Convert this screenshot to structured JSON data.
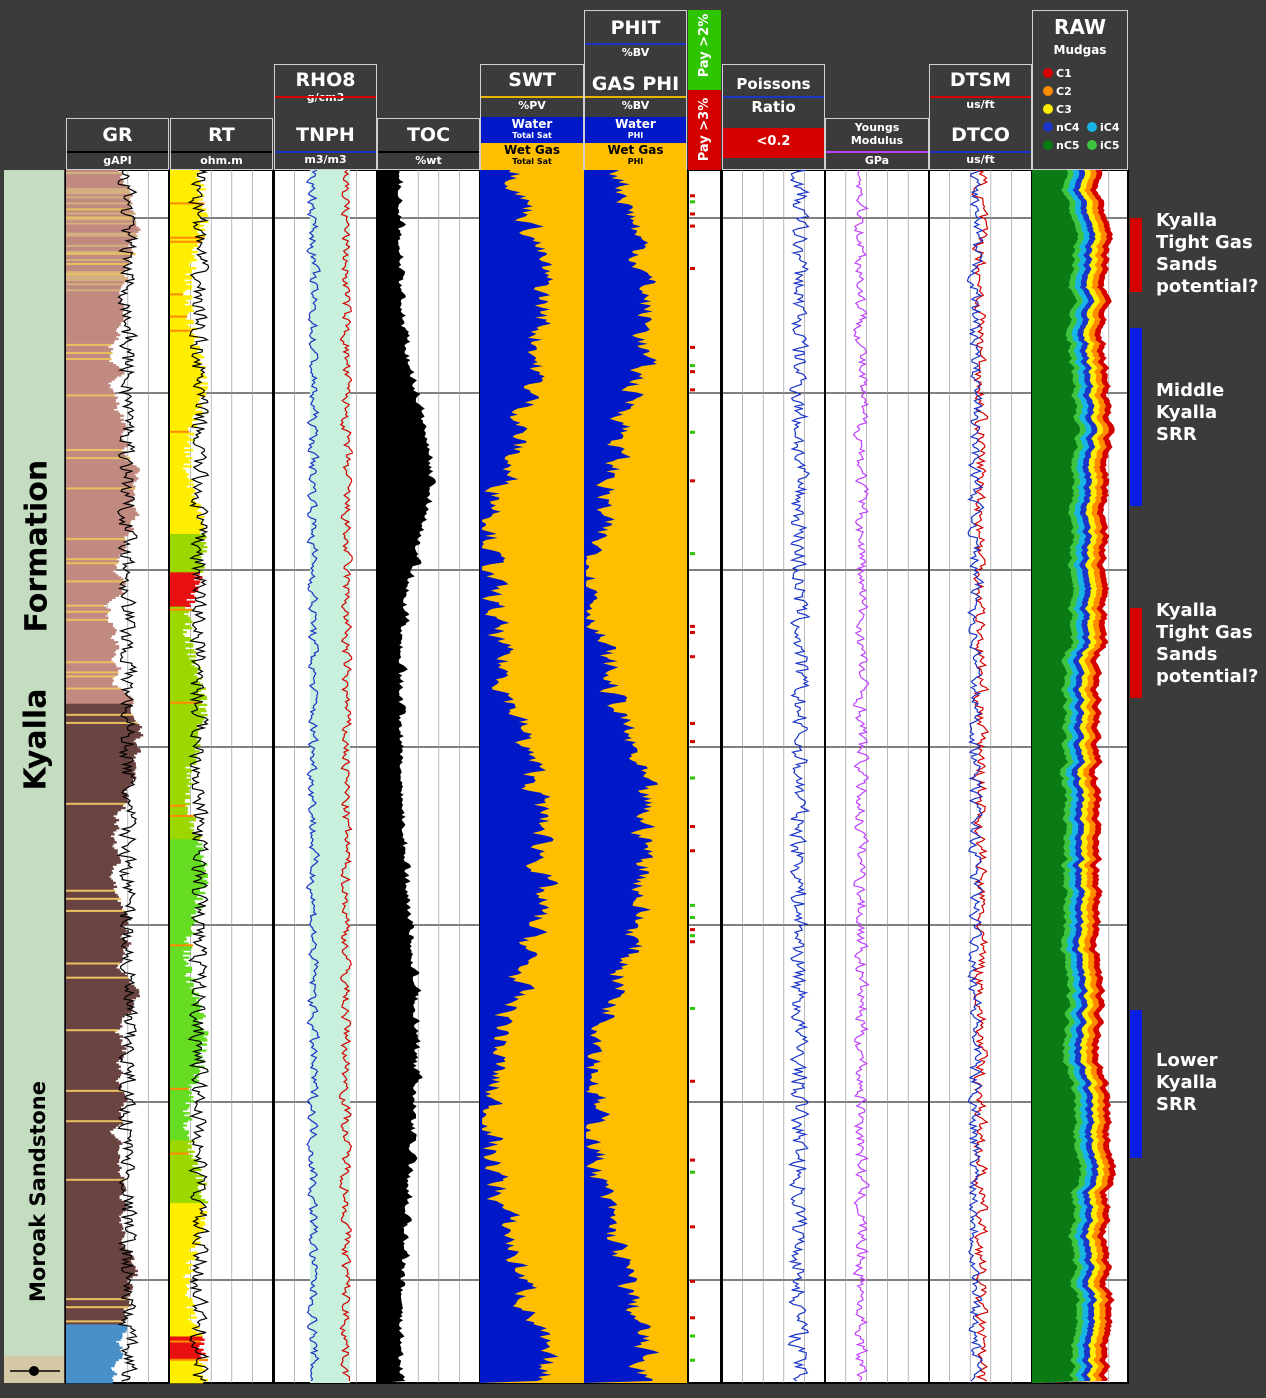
{
  "tracks": {
    "gr": {
      "name": "GR",
      "unit": "gAPI"
    },
    "rt": {
      "name": "RT",
      "unit": "ohm.m"
    },
    "rho": {
      "name": "RHO8",
      "unit": "g/cm3",
      "name2": "TNPH",
      "unit2": "m3/m3"
    },
    "toc": {
      "name": "TOC",
      "unit": "%wt"
    },
    "swt": {
      "name": "SWT",
      "unit": "%PV",
      "water": "Water",
      "water_sub": "Total Sat",
      "gas": "Wet Gas",
      "gas_sub": "Total Sat"
    },
    "phit": {
      "name": "PHIT",
      "unit": "%BV",
      "name2": "GAS PHI",
      "unit2": "%BV",
      "water": "Water",
      "water_sub": "PHI",
      "gas": "Wet Gas",
      "gas_sub": "PHI"
    },
    "pay": {
      "top": "Pay >2%",
      "bottom": "Pay >3%"
    },
    "poisson": {
      "name1": "Poissons",
      "name2": "Ratio",
      "cutoff": "<0.2"
    },
    "youngs": {
      "name1": "Youngs",
      "name2": "Modulus",
      "unit": "GPa"
    },
    "dt": {
      "name": "DTSM",
      "unit": "us/ft",
      "name2": "DTCO",
      "unit2": "us/ft"
    },
    "raw": {
      "name": "RAW",
      "sub": "Mudgas",
      "legend": [
        {
          "label": "C1",
          "color": "#d40000"
        },
        {
          "label": "C2",
          "color": "#ff8c00"
        },
        {
          "label": "C3",
          "color": "#ffee00"
        },
        {
          "label": "nC4",
          "color": "#1a35c8"
        },
        {
          "label": "iC4",
          "color": "#18b4e6"
        },
        {
          "label": "nC5",
          "color": "#0a7a14"
        },
        {
          "label": "iC5",
          "color": "#3fc43f"
        }
      ]
    }
  },
  "zones": {
    "kyalla": "Kyalla",
    "formation": "Formation",
    "moroak": "Moroak Sandstone"
  },
  "annotations": [
    {
      "lines": [
        "Kyalla",
        "Tight Gas",
        "Sands",
        "potential?"
      ],
      "color": "#d40000"
    },
    {
      "lines": [
        "Middle",
        "Kyalla",
        "SRR"
      ],
      "color": "#0a1ee6"
    },
    {
      "lines": [
        "Kyalla",
        "Tight Gas",
        "Sands",
        "potential?"
      ],
      "color": "#d40000"
    },
    {
      "lines": [
        "Lower",
        "Kyalla",
        "SRR"
      ],
      "color": "#0a1ee6"
    }
  ],
  "chart_data": {
    "type": "well log",
    "curves": [
      "GR",
      "RT",
      "RHO8",
      "TNPH",
      "TOC",
      "SWT",
      "PHIT",
      "GAS PHI",
      "Poissons Ratio",
      "Youngs Modulus",
      "DTSM",
      "DTCO",
      "RAW Mudgas"
    ],
    "shading": {
      "water": "#0018c8",
      "wet_gas": "#ffbf00",
      "neutron_density": "#c8f0dc",
      "poisson_cutoff": "#d40000"
    }
  }
}
